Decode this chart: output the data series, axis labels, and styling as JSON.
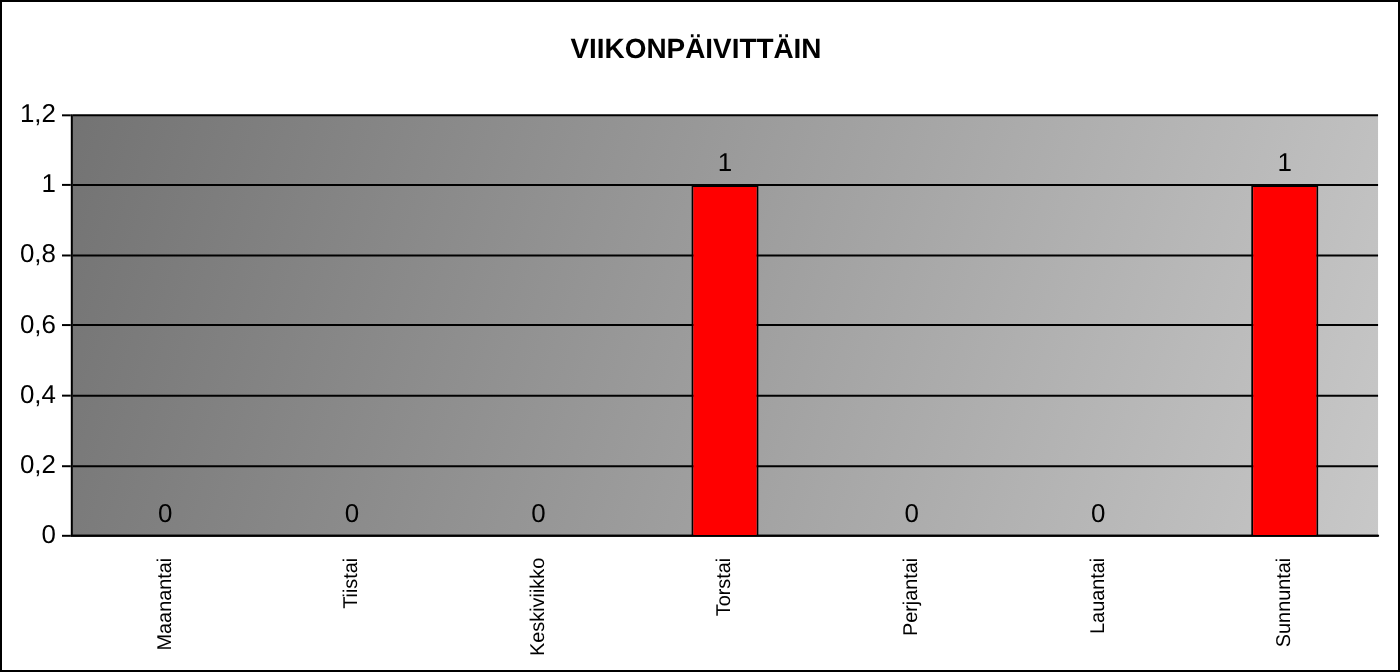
{
  "chart_data": {
    "type": "bar",
    "title": "VIIKONPÄIVITTÄIN",
    "categories": [
      "Maanantai",
      "Tiistai",
      "Keskiviikko",
      "Torstai",
      "Perjantai",
      "Lauantai",
      "Sunnuntai"
    ],
    "values": [
      0,
      0,
      0,
      1,
      0,
      0,
      1
    ],
    "color": "#ff0000",
    "ylim": [
      0,
      1.2
    ],
    "yticks": [
      0,
      {
        "value": 0.2,
        "label": "0,2"
      },
      {
        "value": 0.4,
        "label": "0,4"
      },
      {
        "value": 0.6,
        "label": "0,6"
      },
      {
        "value": 0.8,
        "label": "0,8"
      },
      1,
      {
        "value": 1.2,
        "label": "1,2"
      }
    ],
    "grid": "y",
    "data_labels": true,
    "legend": false
  }
}
